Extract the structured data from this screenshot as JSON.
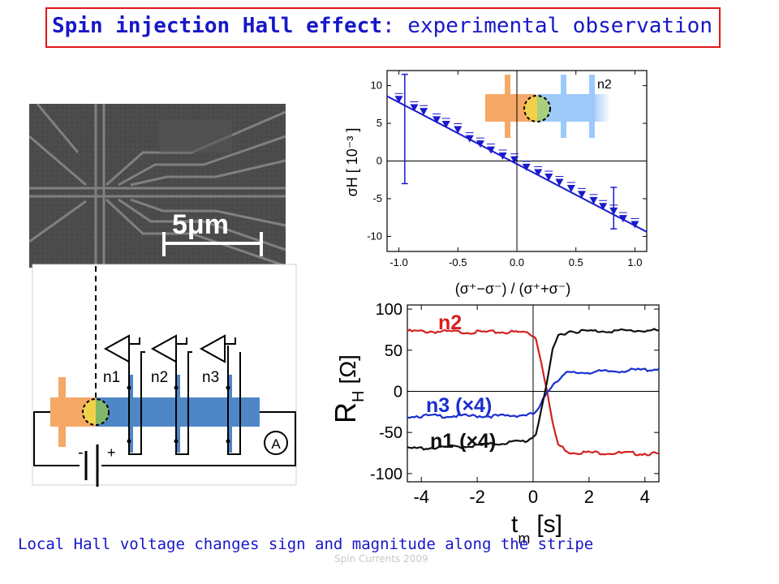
{
  "title": {
    "bold": "Spin injection Hall effect",
    "rest": ": experimental observation"
  },
  "caption": "Local Hall voltage changes sign and magnitude along the stripe",
  "footer": "Spin Currents 2009",
  "sem": {
    "scale_bar_label": "5μm"
  },
  "device": {
    "probes": [
      "n1",
      "n2",
      "n3"
    ],
    "ammeter_label": "A",
    "battery_minus": "-",
    "battery_plus": "+"
  },
  "colors": {
    "title_blue": "#1717c8",
    "title_border": "#e01818",
    "channel_blue": "#4f86c6",
    "contact_orange": "#f6a866",
    "data_blue": "#1a1acc",
    "trace_red": "#d42020",
    "trace_black": "#101010",
    "trace_blue": "#1a2fd0"
  },
  "chart_data": [
    {
      "type": "scatter",
      "inset_label": "n2",
      "xlabel": "(σ⁺−σ⁻) / (σ⁺+σ⁻)",
      "ylabel": "σH [ 10⁻³ ]",
      "xlim": [
        -1.1,
        1.1
      ],
      "ylim": [
        -12,
        12
      ],
      "xticks": [
        "-1.0",
        "-0.5",
        "0.0",
        "0.5",
        "1.0"
      ],
      "yticks": [
        "10",
        "5",
        "0",
        "-5",
        "-10"
      ],
      "fit_line": {
        "x": [
          -1.1,
          1.1
        ],
        "y": [
          8.6,
          -9.4
        ]
      },
      "points": {
        "x": [
          -1.0,
          -0.87,
          -0.79,
          -0.68,
          -0.6,
          -0.5,
          -0.4,
          -0.31,
          -0.22,
          -0.12,
          -0.02,
          0.08,
          0.18,
          0.27,
          0.36,
          0.46,
          0.55,
          0.65,
          0.73,
          0.82,
          0.9,
          1.0
        ],
        "y": [
          8.2,
          7.1,
          6.6,
          5.5,
          4.9,
          4.2,
          3.0,
          2.3,
          1.5,
          0.7,
          0.2,
          -0.8,
          -1.5,
          -2.1,
          -2.8,
          -3.6,
          -4.4,
          -5.2,
          -6.0,
          -6.6,
          -7.6,
          -8.4
        ]
      },
      "error_bars": [
        {
          "x": -0.95,
          "y_low": -3.0,
          "y_high": 11.5
        },
        {
          "x": 0.82,
          "y_low": -9.0,
          "y_high": -3.5
        }
      ]
    },
    {
      "type": "line",
      "xlabel": "t",
      "xlabel_sub": "m",
      "xlabel_unit": "[s]",
      "ylabel": "R",
      "ylabel_sub": "H",
      "ylabel_unit": "[Ω]",
      "xlim": [
        -4.5,
        4.5
      ],
      "ylim": [
        -110,
        105
      ],
      "xticks": [
        "-4",
        "-2",
        "0",
        "2",
        "4"
      ],
      "yticks": [
        "100",
        "50",
        "0",
        "-50",
        "-100"
      ],
      "series": [
        {
          "name": "n2",
          "label": "n2",
          "x": [
            -4.5,
            -2.0,
            -0.2,
            0.1,
            0.3,
            0.5,
            0.7,
            0.9,
            1.3,
            4.5
          ],
          "y": [
            73,
            72,
            72,
            65,
            35,
            0,
            -40,
            -65,
            -74,
            -76
          ]
        },
        {
          "name": "n3 (×4)",
          "label": "n3 (×4)",
          "x": [
            -4.5,
            -1.0,
            0.0,
            0.2,
            0.5,
            0.8,
            1.2,
            4.5
          ],
          "y": [
            -30,
            -30,
            -28,
            -22,
            0,
            12,
            22,
            27
          ]
        },
        {
          "name": "n1 (×4)",
          "label": "n1 (×4)",
          "x": [
            -4.5,
            -2.0,
            -0.2,
            0.1,
            0.3,
            0.5,
            0.7,
            0.9,
            1.3,
            4.5
          ],
          "y": [
            -70,
            -66,
            -60,
            -52,
            -20,
            10,
            50,
            68,
            73,
            74
          ]
        }
      ]
    }
  ]
}
